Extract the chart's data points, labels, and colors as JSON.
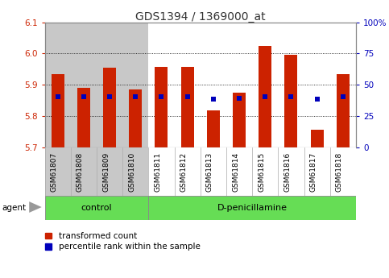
{
  "title": "GDS1394 / 1369000_at",
  "samples": [
    "GSM61807",
    "GSM61808",
    "GSM61809",
    "GSM61810",
    "GSM61811",
    "GSM61812",
    "GSM61813",
    "GSM61814",
    "GSM61815",
    "GSM61816",
    "GSM61817",
    "GSM61818"
  ],
  "red_values": [
    5.935,
    5.89,
    5.955,
    5.884,
    5.956,
    5.956,
    5.817,
    5.874,
    6.025,
    5.997,
    5.757,
    5.935
  ],
  "blue_values": [
    5.862,
    5.862,
    5.863,
    5.862,
    5.862,
    5.862,
    5.855,
    5.857,
    5.863,
    5.863,
    5.853,
    5.862
  ],
  "y_min": 5.7,
  "y_max": 6.1,
  "y_ticks_red": [
    5.7,
    5.8,
    5.9,
    6.0,
    6.1
  ],
  "y_ticks_blue": [
    0,
    25,
    50,
    75,
    100
  ],
  "y_ticks_blue_labels": [
    "0",
    "25",
    "50",
    "75",
    "100%"
  ],
  "n_control": 4,
  "control_label": "control",
  "treatment_label": "D-penicillamine",
  "bar_color_red": "#cc2200",
  "bar_color_blue": "#0000bb",
  "column_bg_gray": "#c8c8c8",
  "column_bg_white": "#ffffff",
  "group_color": "#66dd55",
  "agent_label": "agent",
  "legend_red": "transformed count",
  "legend_blue": "percentile rank within the sample",
  "left_axis_color": "#cc2200",
  "right_axis_color": "#0000bb",
  "bar_width": 0.5,
  "marker_size": 4
}
